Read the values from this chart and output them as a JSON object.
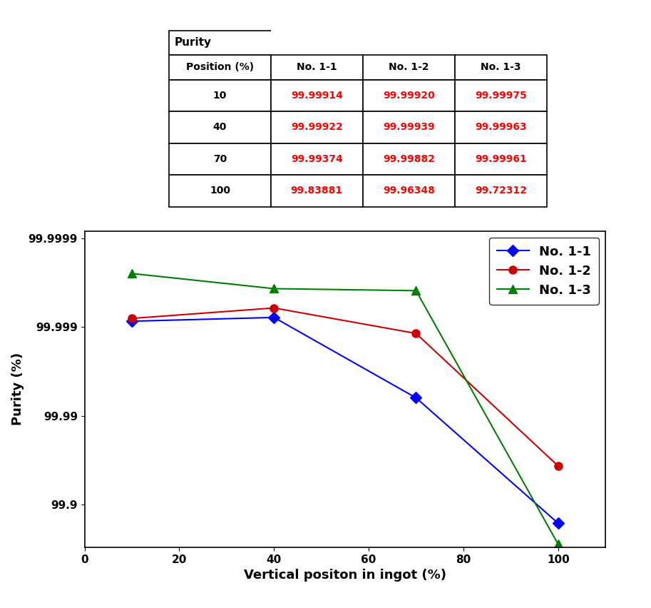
{
  "positions": [
    10,
    40,
    70,
    100
  ],
  "no11": [
    99.99914,
    99.99922,
    99.99374,
    99.83881
  ],
  "no12": [
    99.9992,
    99.99939,
    99.99882,
    99.96348
  ],
  "no13": [
    99.99975,
    99.99963,
    99.99961,
    99.72312
  ],
  "color_11": "#0000ff",
  "color_12": "#cc0000",
  "color_13": "#008000",
  "xlabel": "Vertical positon in ingot (%)",
  "ylabel": "Purity (%)",
  "legend_labels": [
    "No. 1-1",
    "No. 1-2",
    "No. 1-3"
  ],
  "table_title": "Purity",
  "table_header": [
    "Position (%)",
    "No. 1-1",
    "No. 1-2",
    "No. 1-3"
  ],
  "table_rows": [
    [
      "10",
      "99.99914",
      "99.99920",
      "99.99975"
    ],
    [
      "40",
      "99.99922",
      "99.99939",
      "99.99963"
    ],
    [
      "70",
      "99.99374",
      "99.99882",
      "99.99961"
    ],
    [
      "100",
      "99.83881",
      "99.96348",
      "99.72312"
    ]
  ],
  "ytick_vals": [
    99.9,
    99.99,
    99.999,
    99.9999
  ],
  "ytick_labels": [
    "99.9",
    "99.99",
    "99.999",
    "99.9999"
  ],
  "xticks": [
    0,
    20,
    40,
    60,
    80,
    100
  ],
  "xlim": [
    0,
    110
  ],
  "fig_width": 9.13,
  "fig_height": 8.52
}
